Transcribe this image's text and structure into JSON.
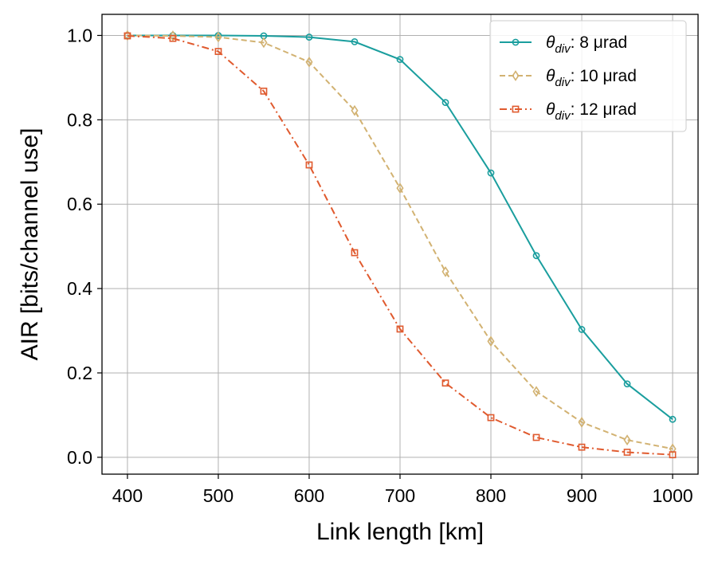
{
  "chart_data": {
    "type": "line",
    "xlabel": "Link length [km]",
    "ylabel": "AIR [bits/channel use]",
    "xlim": [
      372,
      1028
    ],
    "ylim": [
      -0.04,
      1.05
    ],
    "xticks": [
      400,
      500,
      600,
      700,
      800,
      900,
      1000
    ],
    "xtick_labels": [
      "400",
      "500",
      "600",
      "700",
      "800",
      "900",
      "1000"
    ],
    "yticks": [
      0.0,
      0.2,
      0.4,
      0.6,
      0.8,
      1.0
    ],
    "ytick_labels": [
      "0.0",
      "0.2",
      "0.4",
      "0.6",
      "0.8",
      "1.0"
    ],
    "grid": true,
    "legend_position": "top-right",
    "x": [
      400,
      450,
      500,
      550,
      600,
      650,
      700,
      750,
      800,
      850,
      900,
      950,
      1000
    ],
    "series": [
      {
        "name_main": "θ",
        "name_sub": "div",
        "name_rest": ": 8 μrad",
        "color": "#1a9e9e",
        "line_style": "solid",
        "marker": "circle",
        "values": [
          1.0,
          1.0,
          1.0,
          0.999,
          0.996,
          0.985,
          0.943,
          0.841,
          0.674,
          0.478,
          0.303,
          0.174,
          0.09
        ]
      },
      {
        "name_main": "θ",
        "name_sub": "div",
        "name_rest": ": 10 μrad",
        "color": "#d2b272",
        "line_style": "dashed",
        "marker": "diamond",
        "values": [
          1.0,
          0.999,
          0.996,
          0.983,
          0.937,
          0.822,
          0.638,
          0.44,
          0.275,
          0.156,
          0.083,
          0.041,
          0.02
        ]
      },
      {
        "name_main": "θ",
        "name_sub": "div",
        "name_rest": ": 12 μrad",
        "color": "#e05a2e",
        "line_style": "dashdot",
        "marker": "square",
        "values": [
          0.999,
          0.993,
          0.962,
          0.868,
          0.693,
          0.485,
          0.304,
          0.176,
          0.094,
          0.047,
          0.024,
          0.012,
          0.006
        ]
      }
    ]
  }
}
